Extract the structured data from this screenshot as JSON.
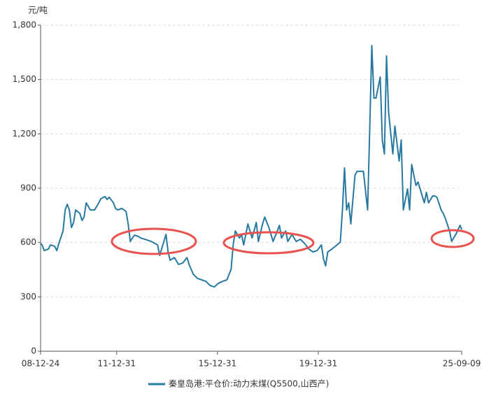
{
  "chart_data": {
    "type": "line",
    "y_unit": "元/吨",
    "series": [
      {
        "name": "秦皇岛港:平仓价:动力末煤(Q5500,山西产)",
        "color": "#2879a0",
        "x": [
          "08-12-24",
          "09-01",
          "09-02",
          "09-04",
          "09-05",
          "09-07",
          "09-08",
          "09-09",
          "09-11",
          "09-12",
          "10-01",
          "10-02",
          "10-03",
          "10-04",
          "10-05",
          "10-07",
          "10-08",
          "10-09",
          "10-10",
          "10-11",
          "10-12",
          "11-02",
          "11-04",
          "11-05",
          "11-07",
          "11-08",
          "11-09",
          "11-11",
          "11-12",
          "12-01",
          "12-03",
          "12-04",
          "12-05",
          "12-06",
          "12-07",
          "12-08",
          "12-09",
          "12-11",
          "12-12",
          "13-03",
          "13-05",
          "13-08",
          "13-09",
          "13-11",
          "13-12",
          "14-01",
          "14-02",
          "14-04",
          "14-06",
          "14-08",
          "14-10",
          "14-11",
          "15-01",
          "15-03",
          "15-05",
          "15-07",
          "15-09",
          "15-11",
          "16-01",
          "16-03",
          "16-05",
          "16-07",
          "16-08",
          "16-09",
          "16-11",
          "16-12",
          "17-01",
          "17-03",
          "17-05",
          "17-07",
          "17-08",
          "17-10",
          "17-11",
          "18-01",
          "18-03",
          "18-05",
          "18-06",
          "18-07",
          "18-09",
          "18-10",
          "18-12",
          "19-02",
          "19-04",
          "19-06",
          "19-08",
          "19-10",
          "19-12",
          "20-02",
          "20-03",
          "20-04",
          "20-05",
          "20-07",
          "20-09",
          "20-11",
          "20-12",
          "21-01",
          "21-02",
          "21-03",
          "21-04",
          "21-06",
          "21-07",
          "21-10",
          "21-12",
          "22-01",
          "22-02",
          "22-03",
          "22-04",
          "22-06",
          "22-07",
          "22-08",
          "22-09",
          "22-10",
          "22-12",
          "23-01",
          "23-03",
          "23-04",
          "23-05",
          "23-07",
          "23-08",
          "23-09",
          "23-11",
          "23-12",
          "24-01",
          "24-03",
          "24-04",
          "24-05",
          "24-07",
          "24-08",
          "24-09",
          "24-11",
          "24-12",
          "25-01",
          "25-03",
          "25-04",
          "25-05",
          "25-06",
          "25-08",
          "25-09-09"
        ],
        "values": [
          595,
          587,
          556,
          564,
          587,
          579,
          556,
          595,
          664,
          780,
          811,
          780,
          683,
          710,
          780,
          761,
          722,
          741,
          819,
          800,
          780,
          780,
          819,
          842,
          854,
          838,
          850,
          819,
          788,
          780,
          788,
          780,
          772,
          703,
          606,
          625,
          641,
          633,
          625,
          614,
          606,
          587,
          529,
          606,
          645,
          548,
          502,
          517,
          479,
          487,
          517,
          479,
          425,
          402,
          394,
          386,
          363,
          355,
          375,
          386,
          394,
          452,
          587,
          664,
          625,
          645,
          587,
          703,
          625,
          711,
          606,
          703,
          741,
          683,
          606,
          664,
          695,
          625,
          664,
          606,
          645,
          606,
          618,
          595,
          564,
          548,
          556,
          587,
          510,
          471,
          548,
          564,
          583,
          602,
          780,
          1012,
          780,
          819,
          703,
          973,
          993,
          993,
          780,
          1224,
          1688,
          1398,
          1398,
          1514,
          1166,
          1089,
          1630,
          1320,
          1089,
          1243,
          1050,
          1166,
          780,
          896,
          780,
          1031,
          915,
          934,
          896,
          819,
          877,
          819,
          857,
          857,
          850,
          780,
          761,
          734,
          664,
          606,
          626,
          645,
          695,
          672
        ]
      }
    ],
    "xlim": [
      "08-12-24",
      "25-09-09"
    ],
    "xticks": [
      "08-12-24",
      "11-12-31",
      "15-12-31",
      "19-12-31",
      "25-09-09"
    ],
    "ylim": [
      0,
      1800
    ],
    "yticks": [
      0,
      300,
      600,
      900,
      {
        "value": 1200,
        "label": "1,200"
      },
      {
        "value": 1500,
        "label": "1,500"
      },
      {
        "value": 1800,
        "label": "1,800"
      }
    ],
    "grid": true
  }
}
